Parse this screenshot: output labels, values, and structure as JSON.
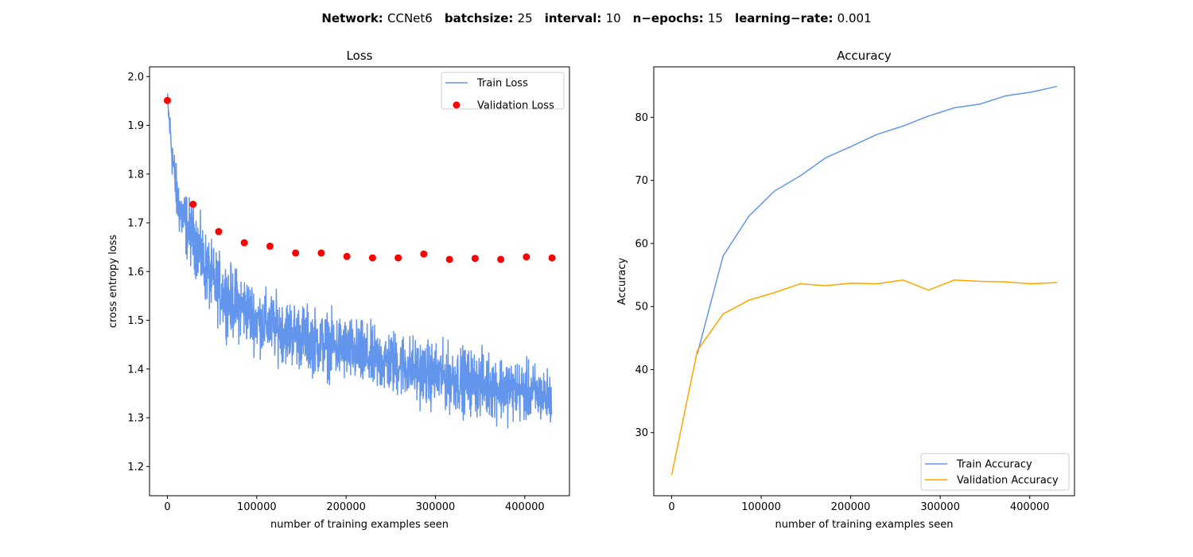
{
  "suptitle": {
    "parts": [
      {
        "key": "Network",
        "value": "CCNet6"
      },
      {
        "key": "batchsize",
        "value": "25"
      },
      {
        "key": "interval",
        "value": "10"
      },
      {
        "key": "n−epochs",
        "value": "15"
      },
      {
        "key": "learning−rate",
        "value": "0.001"
      }
    ]
  },
  "chart_data": [
    {
      "type": "line",
      "title": "Loss",
      "xlabel": "number of training examples seen",
      "ylabel": "cross entropy loss",
      "xlim": [
        -20000,
        450000
      ],
      "ylim": [
        1.14,
        2.02
      ],
      "xticks": [
        0,
        100000,
        200000,
        300000,
        400000
      ],
      "xtick_labels": [
        "0",
        "100000",
        "200000",
        "300000",
        "400000"
      ],
      "yticks": [
        1.2,
        1.3,
        1.4,
        1.5,
        1.6,
        1.7,
        1.8,
        1.9,
        2.0
      ],
      "ytick_labels": [
        "1.2",
        "1.3",
        "1.4",
        "1.5",
        "1.6",
        "1.7",
        "1.8",
        "1.9",
        "2.0"
      ],
      "grid": false,
      "legend_position": "top-right",
      "series": [
        {
          "name": "Train Loss",
          "kind": "line",
          "color": "#6495ED",
          "noisy": true,
          "x": [
            0,
            5000,
            10000,
            15000,
            20000,
            25000,
            30000,
            40000,
            50000,
            60000,
            70000,
            80000,
            90000,
            100000,
            115000,
            130000,
            145000,
            160000,
            175000,
            190000,
            200000,
            215000,
            230000,
            245000,
            260000,
            275000,
            290000,
            305000,
            320000,
            335000,
            350000,
            365000,
            380000,
            395000,
            410000,
            420000,
            430000
          ],
          "y": [
            1.95,
            1.85,
            1.76,
            1.72,
            1.7,
            1.68,
            1.67,
            1.62,
            1.58,
            1.56,
            1.54,
            1.53,
            1.52,
            1.5,
            1.49,
            1.48,
            1.47,
            1.46,
            1.45,
            1.445,
            1.44,
            1.43,
            1.42,
            1.415,
            1.41,
            1.4,
            1.39,
            1.385,
            1.38,
            1.375,
            1.37,
            1.365,
            1.36,
            1.355,
            1.35,
            1.345,
            1.34
          ],
          "noise": [
            0.02,
            0.045,
            0.05,
            0.055,
            0.06,
            0.06,
            0.06,
            0.065,
            0.065,
            0.065,
            0.065,
            0.065,
            0.06,
            0.06,
            0.06,
            0.06,
            0.06,
            0.06,
            0.06,
            0.06,
            0.06,
            0.06,
            0.06,
            0.06,
            0.06,
            0.06,
            0.06,
            0.06,
            0.06,
            0.06,
            0.06,
            0.06,
            0.06,
            0.055,
            0.055,
            0.05,
            0.05
          ]
        },
        {
          "name": "Validation Loss",
          "kind": "scatter",
          "color": "#FF0000",
          "x": [
            0,
            28700,
            57400,
            86100,
            114800,
            143500,
            172200,
            200900,
            229600,
            258300,
            287000,
            315700,
            344400,
            373100,
            401800,
            430500
          ],
          "y": [
            1.951,
            1.738,
            1.682,
            1.659,
            1.652,
            1.638,
            1.638,
            1.631,
            1.628,
            1.628,
            1.636,
            1.625,
            1.627,
            1.625,
            1.63,
            1.628
          ]
        }
      ]
    },
    {
      "type": "line",
      "title": "Accuracy",
      "xlabel": "number of training examples seen",
      "ylabel": "Accuracy",
      "xlim": [
        -20000,
        450000
      ],
      "ylim": [
        20,
        88
      ],
      "xticks": [
        0,
        100000,
        200000,
        300000,
        400000
      ],
      "xtick_labels": [
        "0",
        "100000",
        "200000",
        "300000",
        "400000"
      ],
      "yticks": [
        30,
        40,
        50,
        60,
        70,
        80
      ],
      "ytick_labels": [
        "30",
        "40",
        "50",
        "60",
        "70",
        "80"
      ],
      "grid": false,
      "legend_position": "bottom-right",
      "series": [
        {
          "name": "Train Accuracy",
          "kind": "line",
          "color": "#6495ED",
          "x": [
            28700,
            57400,
            86100,
            114800,
            143500,
            172200,
            200900,
            229600,
            258300,
            287000,
            315700,
            344400,
            373100,
            401800,
            430500
          ],
          "y": [
            42.5,
            58.0,
            64.3,
            68.3,
            70.7,
            73.6,
            75.4,
            77.3,
            78.6,
            80.2,
            81.5,
            82.1,
            83.4,
            84.0,
            84.9
          ]
        },
        {
          "name": "Validation Accuracy",
          "kind": "line",
          "color": "#FFA500",
          "x": [
            0,
            28700,
            57400,
            86100,
            114800,
            143500,
            172200,
            200900,
            229600,
            258300,
            287000,
            315700,
            344400,
            373100,
            401800,
            430500
          ],
          "y": [
            23.3,
            43.0,
            48.8,
            51.0,
            52.2,
            53.6,
            53.3,
            53.7,
            53.6,
            54.2,
            52.6,
            54.2,
            54.0,
            53.9,
            53.6,
            53.8
          ]
        }
      ]
    }
  ]
}
